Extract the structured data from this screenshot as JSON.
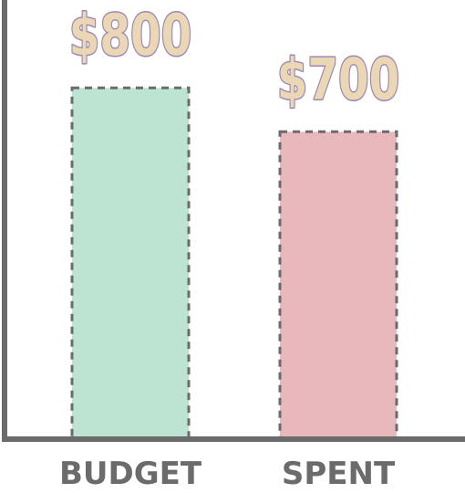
{
  "chart_data": {
    "type": "bar",
    "categories": [
      "BUDGET",
      "SPENT"
    ],
    "values": [
      800,
      700
    ],
    "value_labels": [
      "$800",
      "$700"
    ],
    "title": "",
    "xlabel": "",
    "ylabel": "",
    "ylim": [
      0,
      1000
    ],
    "grid": false,
    "legend": "none",
    "colors": {
      "bars": [
        "#bde4d2",
        "#e8b8bc"
      ],
      "bar_border": "#6b6b6b",
      "axis": "#6b6b6b",
      "value_label_fill": "#ecd7b4",
      "value_label_stroke": "#9b88b8",
      "category_label": "#6b6b6b"
    }
  }
}
